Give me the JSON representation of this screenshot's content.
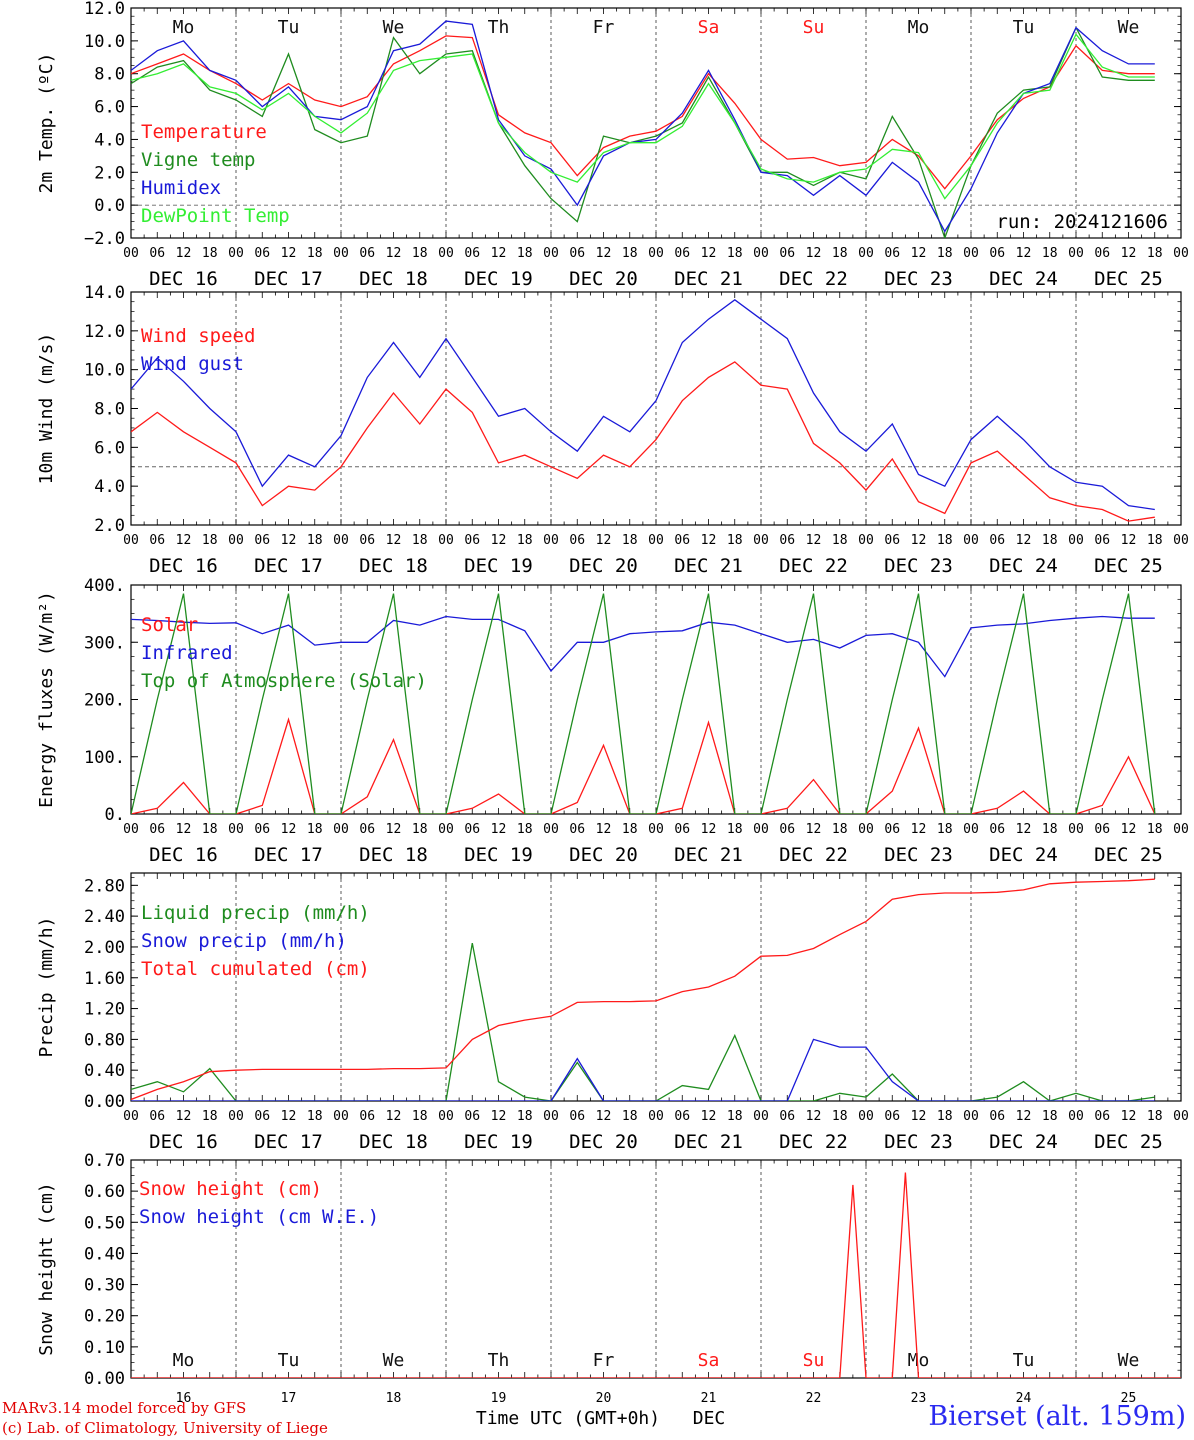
{
  "days": [
    "Mo",
    "Tu",
    "We",
    "Th",
    "Fr",
    "Sa",
    "Su",
    "Mo",
    "Tu",
    "We"
  ],
  "weekend_days": [
    5,
    6
  ],
  "dates": [
    "DEC 16",
    "DEC 17",
    "DEC 18",
    "DEC 19",
    "DEC 20",
    "DEC 21",
    "DEC 22",
    "DEC 23",
    "DEC 24",
    "DEC 25"
  ],
  "day_numbers": [
    "16",
    "17",
    "18",
    "19",
    "20",
    "21",
    "22",
    "23",
    "24",
    "25"
  ],
  "hour_ticks": [
    "00",
    "06",
    "12",
    "18"
  ],
  "final_tick": "00",
  "colors": {
    "red": "#ff1a1a",
    "green": "#1f8c1f",
    "blue": "#1a1ad8",
    "lightgreen": "#33ee33",
    "daygrey": "#111111"
  },
  "xlabel": "Time UTC (GMT+0h)",
  "xlabel_month": "DEC",
  "credits": [
    "MARv3.14 model forced by GFS",
    "(c) Lab. of Climatology, University of Liege"
  ],
  "station": "Bierset (alt. 159m)",
  "run_label": "run: 2024121606",
  "chart_data": [
    {
      "type": "line",
      "ylabel": "2m Temp. (ºC)",
      "ylim": [
        -2,
        12
      ],
      "yticks": [
        "−2.0",
        "0.0",
        "2.0",
        "4.0",
        "6.0",
        "8.0",
        "10.0",
        "12.0"
      ],
      "ytick_values": [
        -2,
        0,
        2,
        4,
        6,
        8,
        10,
        12
      ],
      "ref_line": 0,
      "x_hours": [
        0,
        6,
        12,
        18,
        24,
        30,
        36,
        42,
        48,
        54,
        60,
        66,
        72,
        78,
        84,
        90,
        96,
        102,
        108,
        114,
        120,
        126,
        132,
        138,
        144,
        150,
        156,
        162,
        168,
        174,
        180,
        186,
        192,
        198,
        204,
        210,
        216,
        222,
        228,
        234
      ],
      "series": [
        {
          "name": "Temperature",
          "color": "red",
          "values": [
            8.0,
            8.6,
            9.2,
            8.2,
            7.4,
            6.4,
            7.4,
            6.4,
            6.0,
            6.6,
            8.6,
            9.4,
            10.3,
            10.2,
            5.5,
            4.4,
            3.8,
            1.8,
            3.5,
            4.2,
            4.5,
            5.4,
            8.0,
            6.2,
            4.0,
            2.8,
            2.9,
            2.4,
            2.6,
            4.0,
            3.0,
            1.0,
            3.0,
            5.2,
            6.5,
            7.2,
            9.7,
            8.2,
            8.0,
            8.0
          ]
        },
        {
          "name": "Vigne temp",
          "color": "green",
          "values": [
            7.4,
            8.4,
            8.8,
            7.0,
            6.4,
            5.4,
            9.2,
            4.6,
            3.8,
            4.2,
            10.2,
            8.0,
            9.2,
            9.4,
            5.0,
            2.4,
            0.4,
            -1.0,
            4.2,
            3.8,
            4.2,
            5.0,
            7.8,
            5.0,
            2.0,
            2.0,
            1.2,
            2.0,
            1.6,
            5.4,
            2.8,
            -2.0,
            2.4,
            5.6,
            7.0,
            7.2,
            10.8,
            7.8,
            7.6,
            7.6
          ]
        },
        {
          "name": "Humidex",
          "color": "blue",
          "values": [
            8.2,
            9.4,
            10.0,
            8.2,
            7.6,
            6.0,
            7.2,
            5.4,
            5.2,
            6.0,
            9.4,
            9.8,
            11.2,
            11.0,
            5.2,
            3.0,
            2.2,
            0.0,
            3.0,
            3.8,
            4.0,
            5.6,
            8.2,
            5.2,
            2.0,
            1.8,
            0.6,
            1.8,
            0.6,
            2.6,
            1.4,
            -1.6,
            1.0,
            4.4,
            6.8,
            7.4,
            10.8,
            9.4,
            8.6,
            8.6
          ]
        },
        {
          "name": "DewPoint Temp",
          "color": "lightgreen",
          "values": [
            7.6,
            8.0,
            8.6,
            7.2,
            6.8,
            5.8,
            6.8,
            5.4,
            4.4,
            5.6,
            8.2,
            8.8,
            9.0,
            9.2,
            5.0,
            3.2,
            2.0,
            1.4,
            3.2,
            3.8,
            3.8,
            4.8,
            7.4,
            5.0,
            2.2,
            1.6,
            1.4,
            2.0,
            2.2,
            3.4,
            3.2,
            0.4,
            2.4,
            5.0,
            6.8,
            7.0,
            10.4,
            8.4,
            7.8,
            7.8
          ]
        }
      ]
    },
    {
      "type": "line",
      "ylabel": "10m Wind (m/s)",
      "ylim": [
        2,
        14
      ],
      "yticks": [
        "2.0",
        "4.0",
        "6.0",
        "8.0",
        "10.0",
        "12.0",
        "14.0"
      ],
      "ytick_values": [
        2,
        4,
        6,
        8,
        10,
        12,
        14
      ],
      "ref_line": 5,
      "x_hours": [
        0,
        6,
        12,
        18,
        24,
        30,
        36,
        42,
        48,
        54,
        60,
        66,
        72,
        78,
        84,
        90,
        96,
        102,
        108,
        114,
        120,
        126,
        132,
        138,
        144,
        150,
        156,
        162,
        168,
        174,
        180,
        186,
        192,
        198,
        204,
        210,
        216,
        222,
        228,
        234
      ],
      "series": [
        {
          "name": "Wind speed",
          "color": "red",
          "values": [
            6.8,
            7.8,
            6.8,
            6.0,
            5.2,
            3.0,
            4.0,
            3.8,
            5.0,
            7.0,
            8.8,
            7.2,
            9.0,
            7.8,
            5.2,
            5.6,
            5.0,
            4.4,
            5.6,
            5.0,
            6.4,
            8.4,
            9.6,
            10.4,
            9.2,
            9.0,
            6.2,
            5.2,
            3.8,
            5.4,
            3.2,
            2.6,
            5.2,
            5.8,
            4.6,
            3.4,
            3.0,
            2.8,
            2.2,
            2.4
          ]
        },
        {
          "name": "Wind gust",
          "color": "blue",
          "values": [
            9.0,
            10.6,
            9.4,
            8.0,
            6.8,
            4.0,
            5.6,
            5.0,
            6.6,
            9.6,
            11.4,
            9.6,
            11.6,
            9.6,
            7.6,
            8.0,
            6.8,
            5.8,
            7.6,
            6.8,
            8.4,
            11.4,
            12.6,
            13.6,
            12.6,
            11.6,
            8.8,
            6.8,
            5.8,
            7.2,
            4.6,
            4.0,
            6.4,
            7.6,
            6.4,
            5.0,
            4.2,
            4.0,
            3.0,
            2.8
          ]
        }
      ]
    },
    {
      "type": "line",
      "ylabel": "Energy fluxes (W/m²)",
      "ylim": [
        0,
        400
      ],
      "yticks": [
        "0.",
        "100.",
        "200.",
        "300.",
        "400."
      ],
      "ytick_values": [
        0,
        100,
        200,
        300,
        400
      ],
      "x_hours": [
        0,
        6,
        12,
        18,
        24,
        30,
        36,
        42,
        48,
        54,
        60,
        66,
        72,
        78,
        84,
        90,
        96,
        102,
        108,
        114,
        120,
        126,
        132,
        138,
        144,
        150,
        156,
        162,
        168,
        174,
        180,
        186,
        192,
        198,
        204,
        210,
        216,
        222,
        228,
        234
      ],
      "series": [
        {
          "name": "Solar",
          "color": "red",
          "values": [
            0,
            10,
            55,
            0,
            0,
            15,
            165,
            0,
            0,
            30,
            130,
            0,
            0,
            10,
            35,
            0,
            0,
            20,
            120,
            0,
            0,
            10,
            160,
            0,
            0,
            10,
            60,
            0,
            0,
            40,
            150,
            0,
            0,
            10,
            40,
            0,
            0,
            15,
            100,
            0
          ]
        },
        {
          "name": "Infrared",
          "color": "blue",
          "values": [
            340,
            338,
            335,
            333,
            334,
            315,
            330,
            295,
            300,
            300,
            338,
            330,
            345,
            340,
            340,
            320,
            250,
            300,
            300,
            315,
            318,
            320,
            335,
            330,
            315,
            300,
            305,
            290,
            312,
            315,
            300,
            240,
            325,
            330,
            332,
            338,
            342,
            345,
            342,
            342
          ]
        },
        {
          "name": "Top of Atmosphere (Solar)",
          "color": "green",
          "values": [
            0,
            200,
            385,
            0,
            0,
            200,
            385,
            0,
            0,
            200,
            385,
            0,
            0,
            200,
            385,
            0,
            0,
            200,
            385,
            0,
            0,
            200,
            385,
            0,
            0,
            200,
            385,
            0,
            0,
            200,
            385,
            0,
            0,
            200,
            385,
            0,
            0,
            200,
            385,
            0
          ]
        }
      ]
    },
    {
      "type": "line",
      "ylabel": "Precip (mm/h)",
      "ylim": [
        0,
        2.96
      ],
      "yticks": [
        "0.00",
        "0.40",
        "0.80",
        "1.20",
        "1.60",
        "2.00",
        "2.40",
        "2.80"
      ],
      "ytick_values": [
        0,
        0.4,
        0.8,
        1.2,
        1.6,
        2.0,
        2.4,
        2.8
      ],
      "x_hours": [
        0,
        6,
        12,
        18,
        24,
        30,
        36,
        42,
        48,
        54,
        60,
        66,
        72,
        78,
        84,
        90,
        96,
        102,
        108,
        114,
        120,
        126,
        132,
        138,
        144,
        150,
        156,
        162,
        168,
        174,
        180,
        186,
        192,
        198,
        204,
        210,
        216,
        222,
        228,
        234
      ],
      "series": [
        {
          "name": "Liquid precip (mm/h)",
          "color": "green",
          "values": [
            0.15,
            0.25,
            0.12,
            0.42,
            0.0,
            0.0,
            0.0,
            0.0,
            0.0,
            0.0,
            0.0,
            0.0,
            0.0,
            2.05,
            0.25,
            0.05,
            0.0,
            0.5,
            0.0,
            0.0,
            0.0,
            0.2,
            0.15,
            0.85,
            0.0,
            0.0,
            0.0,
            0.1,
            0.05,
            0.35,
            0.0,
            0.0,
            0.0,
            0.05,
            0.25,
            0.0,
            0.1,
            0.0,
            0.0,
            0.05
          ]
        },
        {
          "name": "Snow precip (mm/h)",
          "color": "blue",
          "values": [
            0,
            0,
            0,
            0,
            0,
            0,
            0,
            0,
            0,
            0,
            0,
            0,
            0,
            0,
            0,
            0,
            0,
            0.55,
            0,
            0,
            0,
            0,
            0,
            0,
            0,
            0,
            0.8,
            0.7,
            0.7,
            0.25,
            0,
            0,
            0,
            0,
            0,
            0,
            0,
            0,
            0,
            0
          ]
        },
        {
          "name": "Total cumulated (cm)",
          "color": "red",
          "values": [
            0.02,
            0.15,
            0.25,
            0.38,
            0.4,
            0.41,
            0.41,
            0.41,
            0.41,
            0.41,
            0.42,
            0.42,
            0.43,
            0.8,
            0.98,
            1.05,
            1.1,
            1.28,
            1.29,
            1.29,
            1.3,
            1.42,
            1.48,
            1.62,
            1.88,
            1.89,
            1.98,
            2.16,
            2.33,
            2.62,
            2.68,
            2.7,
            2.7,
            2.71,
            2.74,
            2.82,
            2.84,
            2.85,
            2.86,
            2.88
          ]
        }
      ]
    },
    {
      "type": "line",
      "ylabel": "Snow height (cm)",
      "ylim": [
        0,
        0.7
      ],
      "yticks": [
        "0.00",
        "0.10",
        "0.20",
        "0.30",
        "0.40",
        "0.50",
        "0.60",
        "0.70"
      ],
      "ytick_values": [
        0,
        0.1,
        0.2,
        0.3,
        0.4,
        0.5,
        0.6,
        0.7
      ],
      "x_hours": [
        0,
        162,
        165,
        168,
        174,
        177,
        180,
        240
      ],
      "series": [
        {
          "name": "Snow height (cm)",
          "color": "red",
          "values": [
            0,
            0,
            0.62,
            0,
            0,
            0.66,
            0,
            0
          ]
        },
        {
          "name": "Snow height (cm W.E.)",
          "color": "blue",
          "values": []
        }
      ]
    }
  ]
}
